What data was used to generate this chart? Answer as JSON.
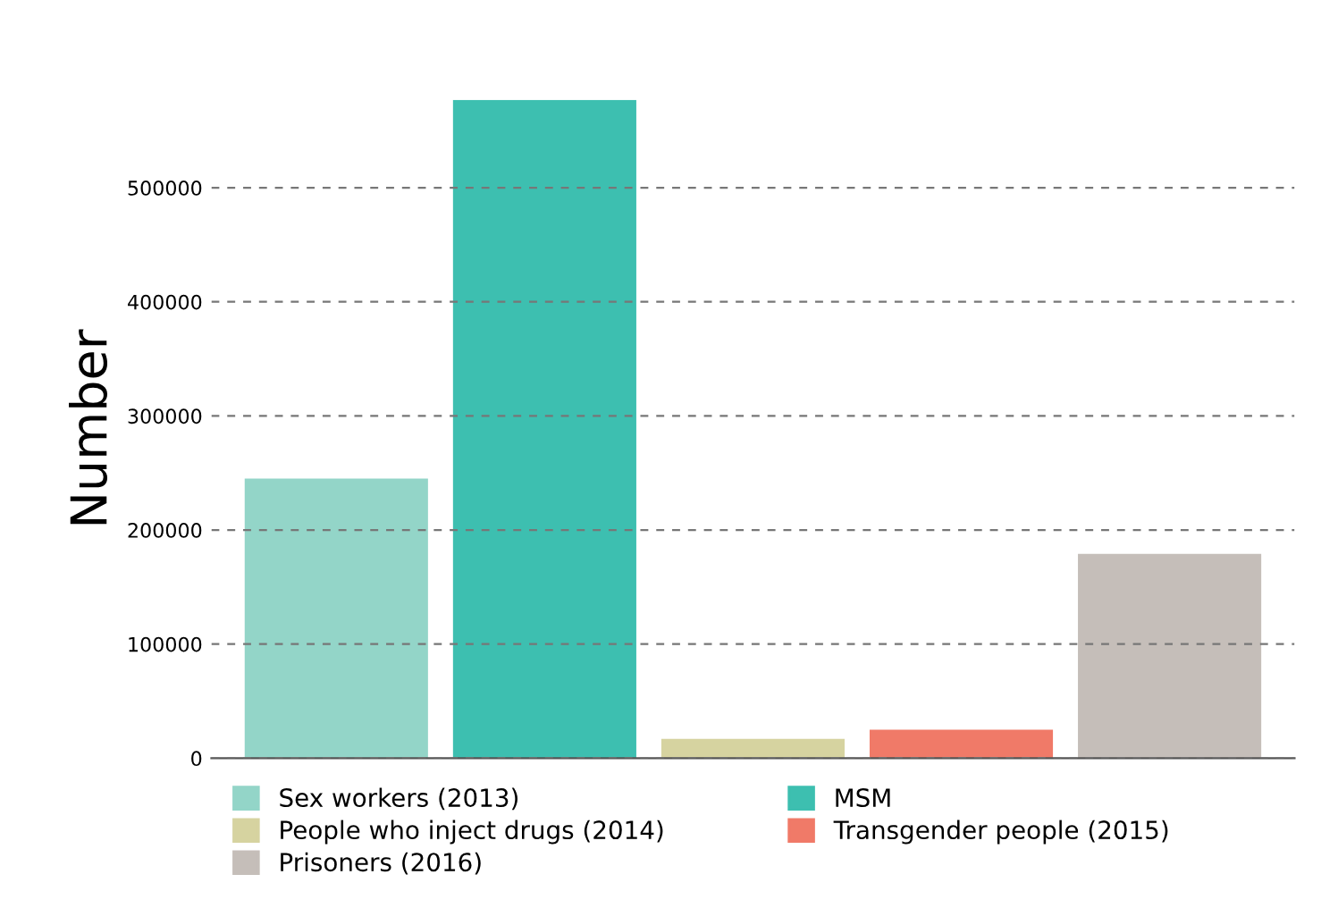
{
  "chart_data": {
    "type": "bar",
    "ylabel": "Number",
    "categories": [
      null,
      null,
      null,
      null,
      null
    ],
    "series": [
      {
        "name": "Sex workers (2013)",
        "color": "#93d5c8",
        "values": [
          245000,
          null,
          null,
          null,
          null
        ]
      },
      {
        "name": "MSM",
        "color": "#3dbfb0",
        "values": [
          null,
          577000,
          null,
          null,
          null
        ]
      },
      {
        "name": "People who inject drugs (2014)",
        "color": "#d6d3a0",
        "values": [
          null,
          null,
          17000,
          null,
          null
        ]
      },
      {
        "name": "Transgender people (2015)",
        "color": "#f07a68",
        "values": [
          null,
          null,
          null,
          25000,
          null
        ]
      },
      {
        "name": "Prisoners (2016)",
        "color": "#c5beb9",
        "values": [
          null,
          null,
          null,
          null,
          179000
        ]
      }
    ],
    "ylim": [
      0,
      577000
    ],
    "yticks": [
      0,
      100000,
      200000,
      300000,
      400000,
      500000
    ],
    "grid": "y",
    "legend": "bottom"
  }
}
